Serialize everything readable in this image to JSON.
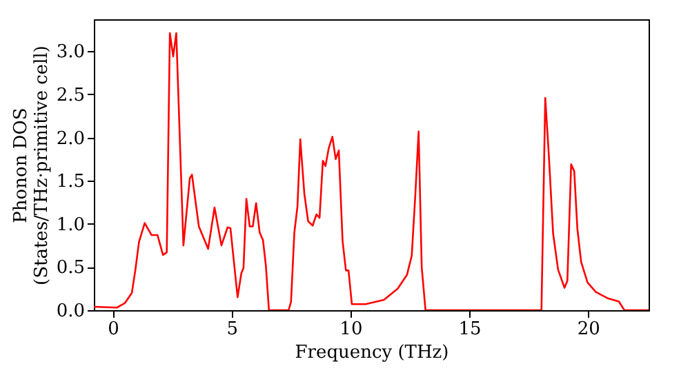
{
  "chart_data": {
    "type": "line",
    "xlabel": "Frequency (THz)",
    "ylabel": "Phonon DOS\n(States/THz·primitive cell)",
    "xlim": [
      -0.8,
      22.55
    ],
    "ylim": [
      0,
      3.37
    ],
    "xticks": [
      0,
      5,
      10,
      15,
      20
    ],
    "yticks": [
      {
        "value": 0,
        "label": "0.0"
      },
      {
        "value": 0.5,
        "label": "0.5"
      },
      {
        "value": 1,
        "label": "1.0"
      },
      {
        "value": 1.5,
        "label": "1.5"
      },
      {
        "value": 2,
        "label": "2.0"
      },
      {
        "value": 2.5,
        "label": "2.5"
      },
      {
        "value": 3,
        "label": "3.0"
      }
    ],
    "grid": false,
    "marker": "none",
    "line_style": "solid",
    "series": [
      {
        "color": "#ff0000",
        "x": [
          -0.8,
          0.17,
          0.5,
          0.8,
          0.95,
          1.1,
          1.34,
          1.63,
          1.88,
          2.11,
          2.27,
          2.4,
          2.54,
          2.67,
          2.97,
          3.24,
          3.33,
          3.62,
          4.01,
          4.28,
          4.57,
          4.83,
          4.95,
          5.25,
          5.41,
          5.5,
          5.62,
          5.76,
          5.89,
          6.03,
          6.18,
          6.32,
          6.44,
          6.57,
          7.4,
          7.5,
          7.64,
          7.77,
          7.89,
          8.06,
          8.22,
          8.41,
          8.57,
          8.7,
          8.84,
          8.95,
          9.09,
          9.24,
          9.38,
          9.51,
          9.67,
          9.81,
          9.92,
          10.06,
          10.64,
          11.41,
          11.99,
          12.38,
          12.58,
          12.73,
          12.87,
          13.0,
          13.16,
          18.04,
          18.2,
          18.35,
          18.53,
          18.74,
          19.01,
          19.13,
          19.29,
          19.42,
          19.55,
          19.71,
          19.98,
          20.33,
          20.81,
          21.3,
          21.53,
          22.55
        ],
        "values": [
          0.04,
          0.03,
          0.08,
          0.2,
          0.47,
          0.79,
          1.01,
          0.87,
          0.87,
          0.64,
          0.67,
          3.21,
          2.94,
          3.21,
          0.75,
          1.53,
          1.57,
          0.97,
          0.71,
          1.19,
          0.75,
          0.96,
          0.95,
          0.15,
          0.43,
          0.49,
          1.29,
          0.97,
          0.97,
          1.24,
          0.9,
          0.81,
          0.52,
          0.0,
          0.0,
          0.1,
          0.9,
          1.2,
          1.98,
          1.35,
          1.03,
          0.98,
          1.11,
          1.07,
          1.73,
          1.67,
          1.88,
          2.01,
          1.75,
          1.85,
          0.8,
          0.46,
          0.46,
          0.07,
          0.07,
          0.12,
          0.25,
          0.41,
          0.63,
          1.33,
          2.07,
          0.5,
          0.0,
          0.0,
          2.46,
          1.8,
          0.89,
          0.47,
          0.26,
          0.34,
          1.69,
          1.61,
          0.95,
          0.56,
          0.32,
          0.21,
          0.14,
          0.1,
          0.0,
          0.0
        ]
      }
    ]
  }
}
